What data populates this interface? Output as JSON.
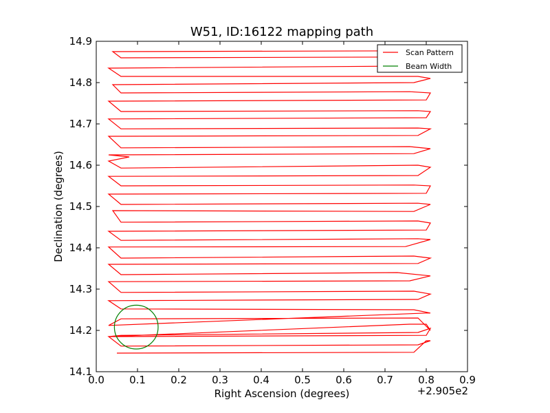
{
  "chart_data": {
    "type": "line",
    "title": "W51, ID:16122 mapping path",
    "xlabel": "Right Ascension (degrees)",
    "ylabel": "Declination (degrees)",
    "x_offset_label": "+2.905e2",
    "xlim": [
      0.0,
      0.9
    ],
    "ylim": [
      14.1,
      14.9
    ],
    "xticks": [
      "0.0",
      "0.1",
      "0.2",
      "0.3",
      "0.4",
      "0.5",
      "0.6",
      "0.7",
      "0.8",
      "0.9"
    ],
    "yticks": [
      "14.1",
      "14.2",
      "14.3",
      "14.4",
      "14.5",
      "14.6",
      "14.7",
      "14.8",
      "14.9"
    ],
    "grid": false,
    "legend_position": "top-right",
    "legend": [
      {
        "label": "Scan Pattern",
        "color": "#ff0000"
      },
      {
        "label": "Beam Width",
        "color": "#008000"
      }
    ],
    "series": [
      {
        "name": "Scan Pattern",
        "color": "#ff0000",
        "points": [
          [
            0.05,
            14.145
          ],
          [
            0.77,
            14.147
          ],
          [
            0.8,
            14.175
          ],
          [
            0.81,
            14.175
          ],
          [
            0.78,
            14.165
          ],
          [
            0.06,
            14.162
          ],
          [
            0.03,
            14.185
          ],
          [
            0.8,
            14.188
          ],
          [
            0.81,
            14.205
          ],
          [
            0.78,
            14.195
          ],
          [
            0.06,
            14.188
          ],
          [
            0.03,
            14.185
          ],
          [
            0.76,
            14.215
          ],
          [
            0.8,
            14.215
          ],
          [
            0.81,
            14.2
          ],
          [
            0.78,
            14.23
          ],
          [
            0.06,
            14.228
          ],
          [
            0.03,
            14.212
          ],
          [
            0.8,
            14.242
          ],
          [
            0.81,
            14.242
          ],
          [
            0.77,
            14.25
          ],
          [
            0.06,
            14.252
          ],
          [
            0.03,
            14.272
          ],
          [
            0.78,
            14.275
          ],
          [
            0.81,
            14.288
          ],
          [
            0.77,
            14.295
          ],
          [
            0.06,
            14.292
          ],
          [
            0.03,
            14.318
          ],
          [
            0.76,
            14.32
          ],
          [
            0.81,
            14.332
          ],
          [
            0.73,
            14.34
          ],
          [
            0.06,
            14.335
          ],
          [
            0.03,
            14.36
          ],
          [
            0.78,
            14.362
          ],
          [
            0.81,
            14.375
          ],
          [
            0.77,
            14.38
          ],
          [
            0.06,
            14.375
          ],
          [
            0.03,
            14.402
          ],
          [
            0.75,
            14.403
          ],
          [
            0.81,
            14.42
          ],
          [
            0.78,
            14.422
          ],
          [
            0.06,
            14.418
          ],
          [
            0.03,
            14.44
          ],
          [
            0.8,
            14.443
          ],
          [
            0.81,
            14.46
          ],
          [
            0.78,
            14.465
          ],
          [
            0.06,
            14.462
          ],
          [
            0.04,
            14.49
          ],
          [
            0.77,
            14.488
          ],
          [
            0.81,
            14.505
          ],
          [
            0.78,
            14.508
          ],
          [
            0.06,
            14.505
          ],
          [
            0.03,
            14.53
          ],
          [
            0.8,
            14.532
          ],
          [
            0.81,
            14.55
          ],
          [
            0.77,
            14.552
          ],
          [
            0.06,
            14.55
          ],
          [
            0.03,
            14.573
          ],
          [
            0.78,
            14.575
          ],
          [
            0.81,
            14.595
          ],
          [
            0.78,
            14.6
          ],
          [
            0.06,
            14.593
          ],
          [
            0.03,
            14.61
          ],
          [
            0.08,
            14.62
          ],
          [
            0.03,
            14.625
          ],
          [
            0.77,
            14.628
          ],
          [
            0.81,
            14.64
          ],
          [
            0.76,
            14.645
          ],
          [
            0.06,
            14.642
          ],
          [
            0.03,
            14.67
          ],
          [
            0.78,
            14.672
          ],
          [
            0.81,
            14.688
          ],
          [
            0.78,
            14.69
          ],
          [
            0.06,
            14.688
          ],
          [
            0.03,
            14.712
          ],
          [
            0.8,
            14.715
          ],
          [
            0.81,
            14.73
          ],
          [
            0.78,
            14.732
          ],
          [
            0.06,
            14.73
          ],
          [
            0.03,
            14.755
          ],
          [
            0.8,
            14.758
          ],
          [
            0.81,
            14.775
          ],
          [
            0.76,
            14.778
          ],
          [
            0.06,
            14.775
          ],
          [
            0.04,
            14.795
          ],
          [
            0.77,
            14.8
          ],
          [
            0.81,
            14.81
          ],
          [
            0.78,
            14.815
          ],
          [
            0.06,
            14.815
          ],
          [
            0.03,
            14.835
          ],
          [
            0.75,
            14.84
          ],
          [
            0.78,
            14.86
          ],
          [
            0.78,
            14.862
          ],
          [
            0.06,
            14.86
          ],
          [
            0.04,
            14.875
          ],
          [
            0.78,
            14.877
          ]
        ]
      },
      {
        "name": "Beam Width",
        "color": "#008000",
        "circle": {
          "cx": 0.097,
          "cy": 14.208,
          "r": 0.053
        }
      }
    ]
  }
}
